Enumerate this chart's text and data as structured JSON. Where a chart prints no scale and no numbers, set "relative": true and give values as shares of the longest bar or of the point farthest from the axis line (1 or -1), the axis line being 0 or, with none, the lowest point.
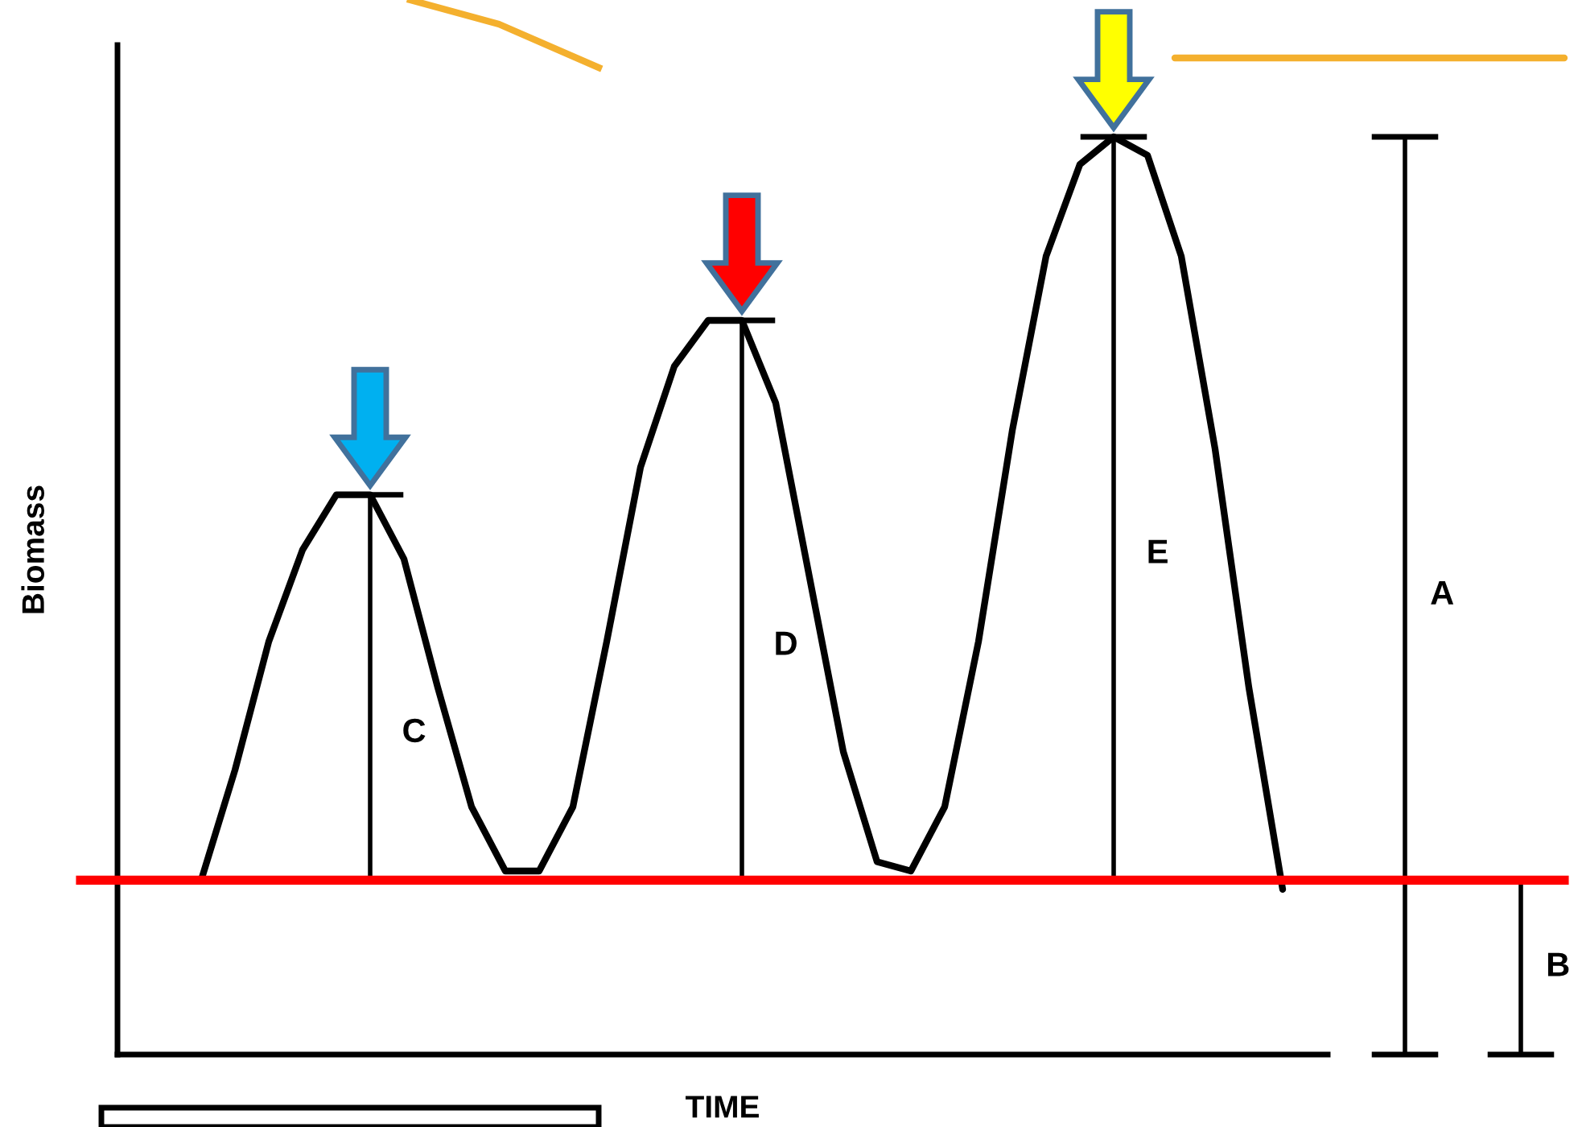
{
  "chart_data": {
    "type": "line",
    "relative": true,
    "categories": [
      null,
      null,
      null,
      null,
      null,
      null,
      null,
      null,
      null,
      null,
      null,
      null,
      null,
      null,
      null,
      null,
      null,
      null,
      null,
      null,
      null,
      null,
      null,
      null,
      null,
      null,
      null,
      null,
      null,
      null,
      null,
      null,
      null
    ],
    "series": [
      {
        "color": "#000000",
        "values": [
          0.19,
          0.31,
          0.45,
          0.55,
          0.61,
          0.61,
          0.54,
          0.4,
          0.27,
          0.2,
          0.2,
          0.27,
          0.45,
          0.64,
          0.75,
          0.8,
          0.8,
          0.71,
          0.52,
          0.33,
          0.21,
          0.2,
          0.27,
          0.45,
          0.68,
          0.87,
          0.97,
          1.0,
          0.98,
          0.87,
          0.66,
          0.4,
          0.18
        ]
      }
    ],
    "xlabel": "TIME",
    "ylabel": "Biomass",
    "annotations": [
      "C",
      "D",
      "E",
      "A",
      "B"
    ],
    "ref_lines": [
      {
        "axis": "y",
        "value": 0.19,
        "color": "#ff0000"
      }
    ],
    "marker": "none",
    "line_style": "solid"
  }
}
